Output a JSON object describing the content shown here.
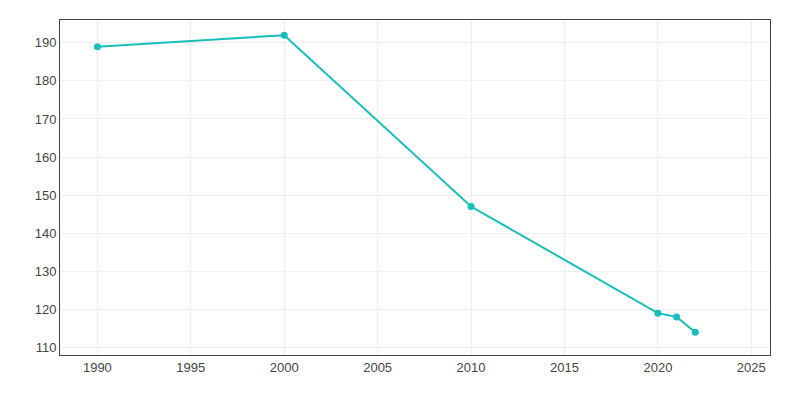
{
  "chart_data": {
    "type": "line",
    "x": [
      1990,
      2000,
      2010,
      2020,
      2021,
      2022
    ],
    "values": [
      189,
      192,
      147,
      119,
      118,
      114
    ],
    "color": "#17BEBB",
    "marker": "circle",
    "xlim": [
      1988,
      2026
    ],
    "ylim": [
      108,
      196
    ],
    "xticks": [
      1990,
      1995,
      2000,
      2005,
      2010,
      2015,
      2020,
      2025
    ],
    "yticks": [
      110,
      120,
      130,
      140,
      150,
      160,
      170,
      180,
      190
    ],
    "grid": true
  }
}
